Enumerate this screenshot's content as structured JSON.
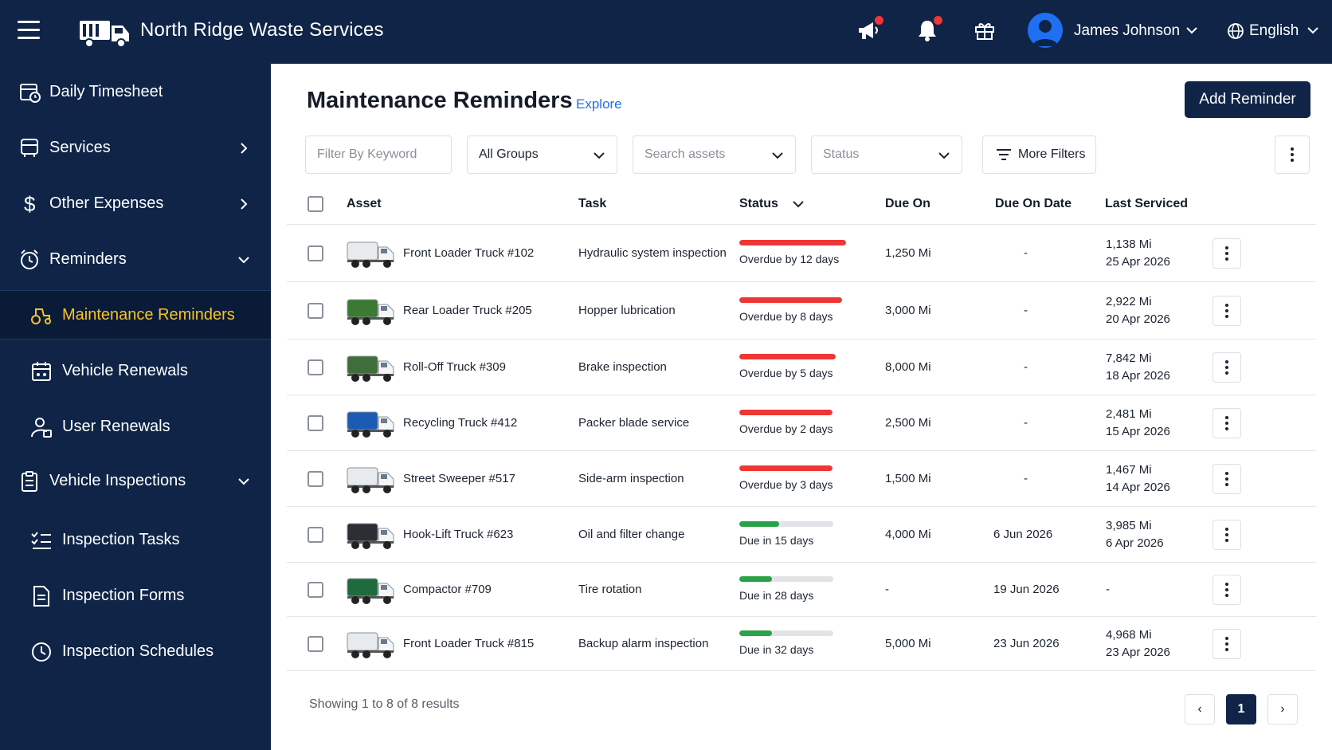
{
  "app": {
    "title": "North Ridge Waste Services"
  },
  "header": {
    "user_name": "James Johnson",
    "language": "English"
  },
  "sidebar": {
    "items": [
      {
        "label": "Daily Timesheet",
        "icon": "calendar-clock-icon"
      },
      {
        "label": "Services",
        "icon": "services-icon",
        "chevron": "right"
      },
      {
        "label": "Other Expenses",
        "icon": "dollar-icon",
        "chevron": "right"
      },
      {
        "label": "Reminders",
        "icon": "alarm-clock-icon",
        "chevron": "down"
      },
      {
        "label": "Maintenance Reminders",
        "icon": "tractor-icon",
        "active": true
      },
      {
        "label": "Vehicle Renewals",
        "icon": "calendar-icon"
      },
      {
        "label": "User Renewals",
        "icon": "user-id-icon"
      },
      {
        "label": "Vehicle Inspections",
        "icon": "clipboard-icon",
        "chevron": "down"
      },
      {
        "label": "Inspection Tasks",
        "icon": "checklist-icon"
      },
      {
        "label": "Inspection Forms",
        "icon": "form-icon"
      },
      {
        "label": "Inspection Schedules",
        "icon": "clock-icon"
      }
    ]
  },
  "page": {
    "title": "Maintenance Reminders",
    "explore": "Explore",
    "add_button": "Add Reminder"
  },
  "filters": {
    "keyword_placeholder": "Filter By Keyword",
    "groups": "All Groups",
    "assets_placeholder": "Search assets",
    "status_placeholder": "Status",
    "more_filters": "More Filters"
  },
  "table": {
    "headers": {
      "asset": "Asset",
      "task": "Task",
      "status": "Status",
      "due_on": "Due On",
      "due_on_date": "Due On Date",
      "last_serviced": "Last Serviced"
    },
    "rows": [
      {
        "asset": "Front Loader Truck #102",
        "truck_color": "#e8ebee",
        "task": "Hydraulic system inspection",
        "status": "Overdue by 12 days",
        "progress": 1.0,
        "state": "overdue",
        "due_on": "1,250 Mi",
        "due_on_date": "-",
        "last_mi": "1,138 Mi",
        "last_date": "25 Apr 2026"
      },
      {
        "asset": "Rear Loader Truck #205",
        "truck_color": "#3c7a33",
        "task": "Hopper lubrication",
        "status": "Overdue by 8 days",
        "progress": 0.96,
        "state": "overdue",
        "due_on": "3,000 Mi",
        "due_on_date": "-",
        "last_mi": "2,922 Mi",
        "last_date": "20 Apr 2026"
      },
      {
        "asset": "Roll-Off Truck #309",
        "truck_color": "#3f6e3a",
        "task": "Brake inspection",
        "status": "Overdue by 5 days",
        "progress": 0.9,
        "state": "overdue",
        "due_on": "8,000 Mi",
        "due_on_date": "-",
        "last_mi": "7,842 Mi",
        "last_date": "18 Apr 2026"
      },
      {
        "asset": "Recycling Truck #412",
        "truck_color": "#1b5bb5",
        "task": "Packer blade service",
        "status": "Overdue by 2 days",
        "progress": 0.87,
        "state": "overdue",
        "due_on": "2,500 Mi",
        "due_on_date": "-",
        "last_mi": "2,481 Mi",
        "last_date": "15 Apr 2026"
      },
      {
        "asset": "Street Sweeper #517",
        "truck_color": "#e8ebee",
        "task": "Side-arm inspection",
        "status": "Overdue by 3 days",
        "progress": 0.87,
        "state": "overdue",
        "due_on": "1,500 Mi",
        "due_on_date": "-",
        "last_mi": "1,467 Mi",
        "last_date": "14 Apr 2026"
      },
      {
        "asset": "Hook-Lift Truck #623",
        "truck_color": "#2b2f35",
        "task": "Oil and filter change",
        "status": "Due in 15 days",
        "progress": 0.42,
        "state": "due",
        "due_on": "4,000 Mi",
        "due_on_date": "6 Jun 2026",
        "last_mi": "3,985 Mi",
        "last_date": "6 Apr 2026"
      },
      {
        "asset": "Compactor #709",
        "truck_color": "#1f6b3c",
        "task": "Tire rotation",
        "status": "Due in 28 days",
        "progress": 0.35,
        "state": "due",
        "due_on": "-",
        "due_on_date": "19 Jun 2026",
        "last_mi": "-",
        "last_date": ""
      },
      {
        "asset": "Front Loader Truck #815",
        "truck_color": "#e8ebee",
        "task": "Backup alarm inspection",
        "status": "Due in 32 days",
        "progress": 0.35,
        "state": "due",
        "due_on": "5,000 Mi",
        "due_on_date": "23 Jun 2026",
        "last_mi": "4,968 Mi",
        "last_date": "23 Apr 2026"
      }
    ]
  },
  "footer": {
    "summary": "Showing 1 to 8 of 8 results",
    "current_page": "1",
    "prev": "‹",
    "next": "›"
  },
  "colors": {
    "navy": "#0f2447",
    "accent_blue": "#1f6ff2",
    "active_yellow": "#f7c325",
    "overdue_red": "#f03535",
    "due_green": "#2aa14a"
  }
}
